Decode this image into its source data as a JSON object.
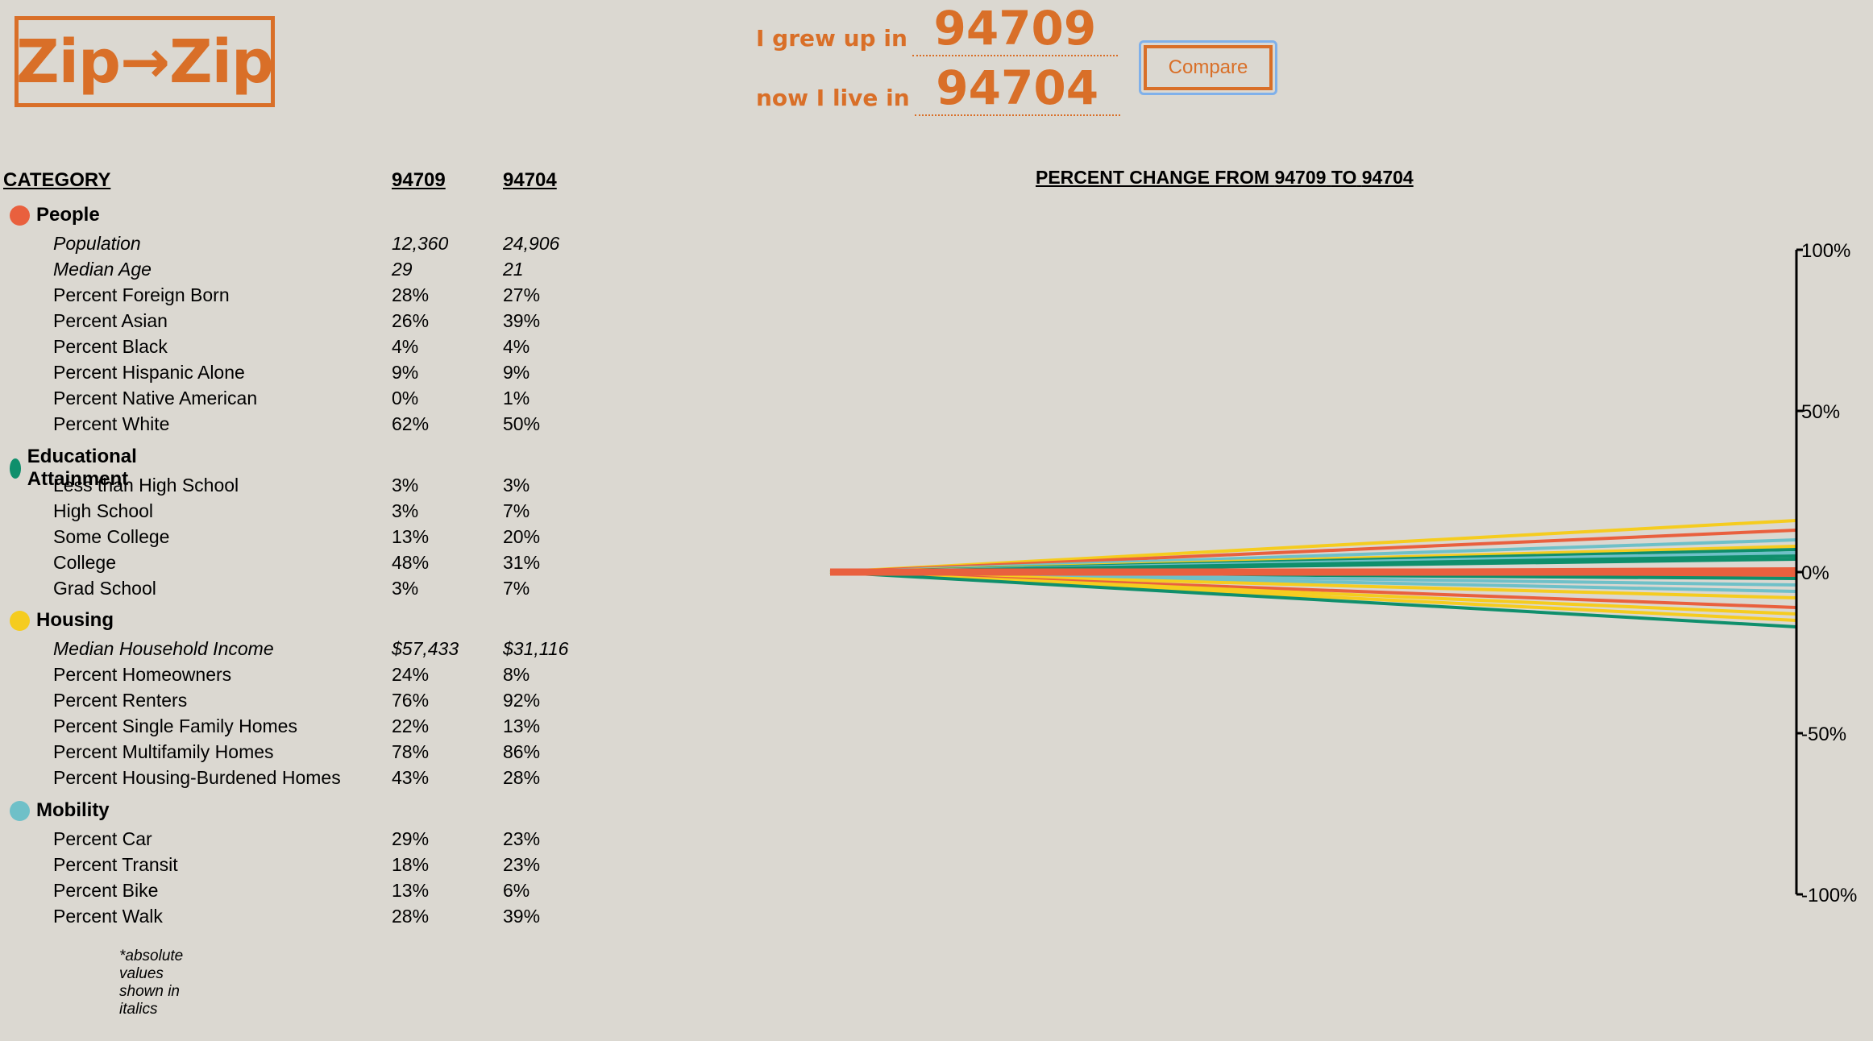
{
  "logo": "Zip→Zip",
  "form": {
    "grew_label": "I grew up in",
    "grew_zip": "94709",
    "live_label": "now I live in",
    "live_zip": "94704",
    "compare_label": "Compare"
  },
  "table": {
    "col_category": "CATEGORY",
    "col_a": "94709",
    "col_b": "94704",
    "footnote": "*absolute values shown in italics",
    "categories": [
      {
        "title": "People",
        "color": "#e9603e",
        "rows": [
          {
            "label": "Population",
            "a": "12,360",
            "b": "24,906",
            "italic": true
          },
          {
            "label": "Median Age",
            "a": "29",
            "b": "21",
            "italic": true
          },
          {
            "label": "Percent Foreign Born",
            "a": "28%",
            "b": "27%"
          },
          {
            "label": "Percent Asian",
            "a": "26%",
            "b": "39%"
          },
          {
            "label": "Percent Black",
            "a": "4%",
            "b": "4%"
          },
          {
            "label": "Percent Hispanic Alone",
            "a": "9%",
            "b": "9%"
          },
          {
            "label": "Percent Native American",
            "a": "0%",
            "b": "1%"
          },
          {
            "label": "Percent White",
            "a": "62%",
            "b": "50%"
          }
        ]
      },
      {
        "title": "Educational Attainment",
        "color": "#0f8f6c",
        "rows": [
          {
            "label": "Less than High School",
            "a": "3%",
            "b": "3%"
          },
          {
            "label": "High School",
            "a": "3%",
            "b": "7%"
          },
          {
            "label": "Some College",
            "a": "13%",
            "b": "20%"
          },
          {
            "label": "College",
            "a": "48%",
            "b": "31%"
          },
          {
            "label": "Grad School",
            "a": "3%",
            "b": "7%"
          }
        ]
      },
      {
        "title": "Housing",
        "color": "#f5cc1f",
        "rows": [
          {
            "label": "Median Household Income",
            "a": "$57,433",
            "b": "$31,116",
            "italic": true
          },
          {
            "label": "Percent Homeowners",
            "a": "24%",
            "b": "8%"
          },
          {
            "label": "Percent Renters",
            "a": "76%",
            "b": "92%"
          },
          {
            "label": "Percent Single Family Homes",
            "a": "22%",
            "b": "13%"
          },
          {
            "label": "Percent Multifamily Homes",
            "a": "78%",
            "b": "86%"
          },
          {
            "label": "Percent Housing-Burdened Homes",
            "a": "43%",
            "b": "28%"
          }
        ]
      },
      {
        "title": "Mobility",
        "color": "#6fc0c8",
        "rows": [
          {
            "label": "Percent Car",
            "a": "29%",
            "b": "23%"
          },
          {
            "label": "Percent Transit",
            "a": "18%",
            "b": "23%"
          },
          {
            "label": "Percent Bike",
            "a": "13%",
            "b": "6%"
          },
          {
            "label": "Percent Walk",
            "a": "28%",
            "b": "39%"
          }
        ]
      }
    ]
  },
  "chart_data": {
    "type": "line",
    "title_prefix": "PERCENT CHANGE FROM",
    "title_mid": "TO",
    "title_a": "94709",
    "title_b": "94704",
    "ylim": [
      -100,
      100
    ],
    "y_ticks": [
      "100%",
      "50%",
      "0%",
      "-50%",
      "-100%"
    ],
    "y_tick_values": [
      100,
      50,
      0,
      -50,
      -100
    ],
    "series": [
      {
        "color": "#f5cc1f",
        "end": 16
      },
      {
        "color": "#e9603e",
        "end": 13
      },
      {
        "color": "#6fc0c8",
        "end": 10
      },
      {
        "color": "#f5cc1f",
        "end": 8
      },
      {
        "color": "#0f8f6c",
        "end": 7
      },
      {
        "color": "#6fc0c8",
        "end": 6
      },
      {
        "color": "#0f8f6c",
        "end": 5
      },
      {
        "color": "#0f8f6c",
        "end": 4
      },
      {
        "color": "#e9603e",
        "end": 1
      },
      {
        "color": "#e9603e",
        "end": 0
      },
      {
        "color": "#e9603e",
        "end": -1
      },
      {
        "color": "#0f8f6c",
        "end": -2
      },
      {
        "color": "#6fc0c8",
        "end": -4
      },
      {
        "color": "#6fc0c8",
        "end": -6
      },
      {
        "color": "#f5cc1f",
        "end": -8
      },
      {
        "color": "#e9603e",
        "end": -11
      },
      {
        "color": "#f5cc1f",
        "end": -13
      },
      {
        "color": "#f5cc1f",
        "end": -15
      },
      {
        "color": "#0f8f6c",
        "end": -17
      }
    ]
  }
}
